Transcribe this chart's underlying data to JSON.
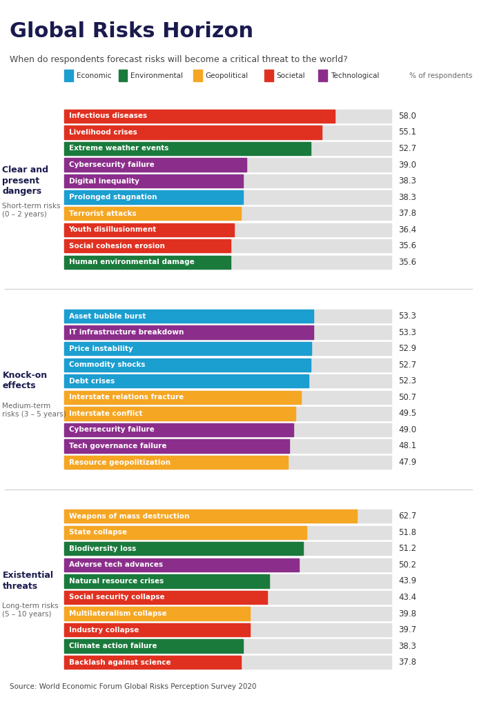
{
  "title": "Global Risks Horizon",
  "subtitle": "When do respondents forecast risks will become a critical threat to the world?",
  "source": "Source: World Economic Forum Global Risks Perception Survey 2020",
  "legend": [
    {
      "label": "Economic",
      "color": "#1B9ED0"
    },
    {
      "label": "Environmental",
      "color": "#1A7A3C"
    },
    {
      "label": "Geopolitical",
      "color": "#F5A623"
    },
    {
      "label": "Societal",
      "color": "#E03020"
    },
    {
      "label": "Technological",
      "color": "#8B2E8B"
    }
  ],
  "sections": [
    {
      "section_title": "Clear and\npresent\ndangers",
      "section_sub": "Short-term risks\n(0 – 2 years)",
      "bars": [
        {
          "label": "Infectious diseases",
          "value": 58.0,
          "color": "#E03020"
        },
        {
          "label": "Livelihood crises",
          "value": 55.1,
          "color": "#E03020"
        },
        {
          "label": "Extreme weather events",
          "value": 52.7,
          "color": "#1A7A3C"
        },
        {
          "label": "Cybersecurity failure",
          "value": 39.0,
          "color": "#8B2E8B"
        },
        {
          "label": "Digital inequality",
          "value": 38.3,
          "color": "#8B2E8B"
        },
        {
          "label": "Prolonged stagnation",
          "value": 38.3,
          "color": "#1B9ED0"
        },
        {
          "label": "Terrorist attacks",
          "value": 37.8,
          "color": "#F5A623"
        },
        {
          "label": "Youth disillusionment",
          "value": 36.4,
          "color": "#E03020"
        },
        {
          "label": "Social cohesion erosion",
          "value": 35.6,
          "color": "#E03020"
        },
        {
          "label": "Human environmental damage",
          "value": 35.6,
          "color": "#1A7A3C"
        }
      ]
    },
    {
      "section_title": "Knock-on\neffects",
      "section_sub": "Medium-term\nrisks (3 – 5 years)",
      "bars": [
        {
          "label": "Asset bubble burst",
          "value": 53.3,
          "color": "#1B9ED0"
        },
        {
          "label": "IT infrastructure breakdown",
          "value": 53.3,
          "color": "#8B2E8B"
        },
        {
          "label": "Price instability",
          "value": 52.9,
          "color": "#1B9ED0"
        },
        {
          "label": "Commodity shocks",
          "value": 52.7,
          "color": "#1B9ED0"
        },
        {
          "label": "Debt crises",
          "value": 52.3,
          "color": "#1B9ED0"
        },
        {
          "label": "Interstate relations fracture",
          "value": 50.7,
          "color": "#F5A623"
        },
        {
          "label": "Interstate conflict",
          "value": 49.5,
          "color": "#F5A623"
        },
        {
          "label": "Cybersecurity failure",
          "value": 49.0,
          "color": "#8B2E8B"
        },
        {
          "label": "Tech governance failure",
          "value": 48.1,
          "color": "#8B2E8B"
        },
        {
          "label": "Resource geopolitization",
          "value": 47.9,
          "color": "#F5A623"
        }
      ]
    },
    {
      "section_title": "Existential\nthreats",
      "section_sub": "Long-term risks\n(5 – 10 years)",
      "bars": [
        {
          "label": "Weapons of mass destruction",
          "value": 62.7,
          "color": "#F5A623"
        },
        {
          "label": "State collapse",
          "value": 51.8,
          "color": "#F5A623"
        },
        {
          "label": "Biodiversity loss",
          "value": 51.2,
          "color": "#1A7A3C"
        },
        {
          "label": "Adverse tech advances",
          "value": 50.2,
          "color": "#8B2E8B"
        },
        {
          "label": "Natural resource crises",
          "value": 43.9,
          "color": "#1A7A3C"
        },
        {
          "label": "Social security collapse",
          "value": 43.4,
          "color": "#E03020"
        },
        {
          "label": "Multilateralism collapse",
          "value": 39.8,
          "color": "#F5A623"
        },
        {
          "label": "Industry collapse",
          "value": 39.7,
          "color": "#E03020"
        },
        {
          "label": "Climate action failure",
          "value": 38.3,
          "color": "#1A7A3C"
        },
        {
          "label": "Backlash against science",
          "value": 37.8,
          "color": "#E03020"
        }
      ]
    }
  ],
  "bar_bg_color": "#E0E0E0",
  "max_value": 70,
  "title_color": "#1a1a4e",
  "section_title_color": "#1a1a4e",
  "section_sub_color": "#666666",
  "value_color": "#333333",
  "separator_color": "#cccccc"
}
